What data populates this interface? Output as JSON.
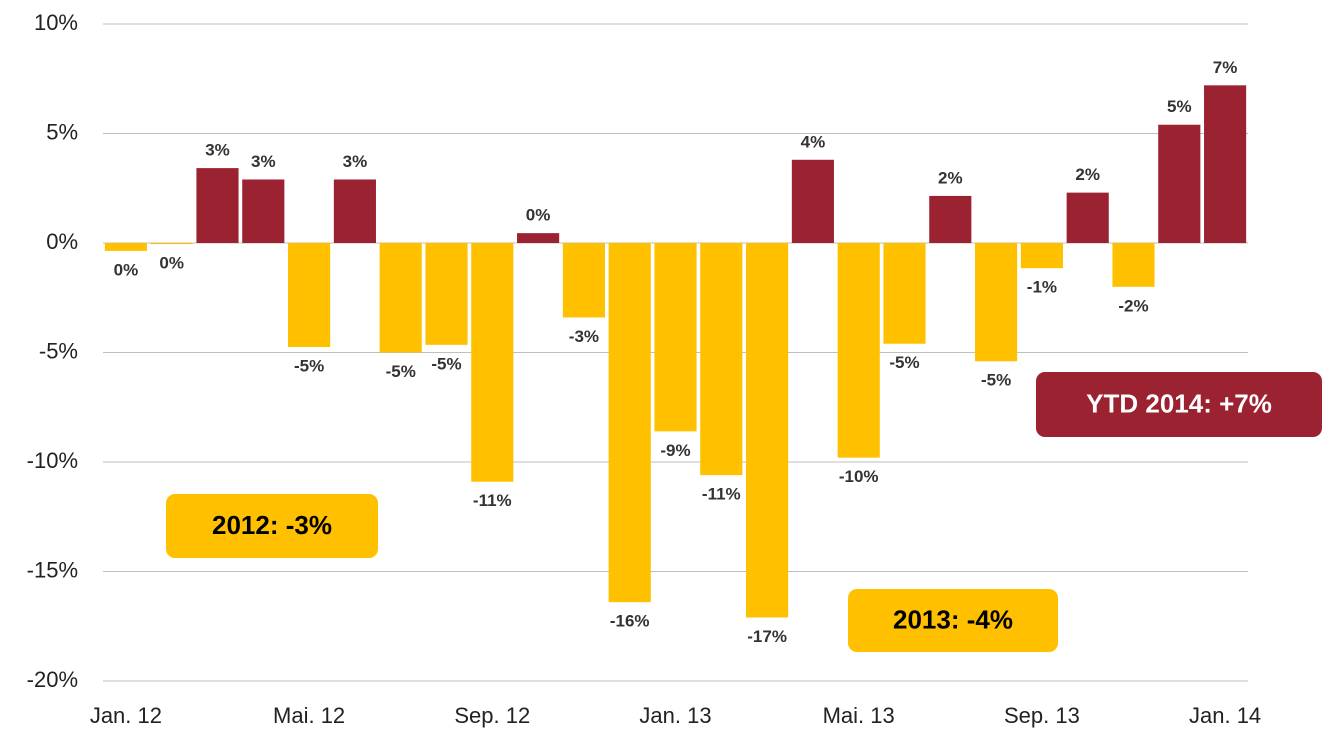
{
  "chart_data": {
    "type": "bar",
    "categories": [
      "Jan. 12",
      null,
      null,
      null,
      "Mai. 12",
      null,
      null,
      null,
      "Sep. 12",
      null,
      null,
      null,
      "Jan. 13",
      null,
      null,
      null,
      "Mai. 13",
      null,
      null,
      null,
      "Sep. 13",
      null,
      null,
      null,
      "Jan. 14"
    ],
    "values": [
      -0.36,
      -0.05,
      3.42,
      2.9,
      -4.75,
      2.9,
      -5.0,
      -4.65,
      -10.9,
      0.45,
      -3.4,
      -16.4,
      -8.6,
      -10.6,
      -17.1,
      3.8,
      -9.8,
      -4.6,
      2.15,
      -5.4,
      -1.15,
      2.3,
      -2.0,
      5.4,
      7.2
    ],
    "value_labels": [
      "0%",
      "0%",
      "3%",
      "3%",
      "-5%",
      "3%",
      "-5%",
      "-5%",
      "-11%",
      "0%",
      "-3%",
      "-16%",
      "-9%",
      "-11%",
      "-17%",
      "4%",
      "-10%",
      "-5%",
      "2%",
      "-5%",
      "-1%",
      "2%",
      "-2%",
      "5%",
      "7%"
    ],
    "positive_color": "#9b2230",
    "negative_color": "#ffc000",
    "ylim": [
      -20,
      10
    ],
    "yticks": [
      {
        "value": -20,
        "label": "-20%"
      },
      {
        "value": -15,
        "label": "-15%"
      },
      {
        "value": -10,
        "label": "-10%"
      },
      {
        "value": -5,
        "label": "-5%"
      },
      {
        "value": 0,
        "label": "0%"
      },
      {
        "value": 5,
        "label": "5%"
      },
      {
        "value": 10,
        "label": "10%"
      }
    ],
    "grid": true,
    "annotations": [
      {
        "text": "2012:  -3%",
        "color": "#ffc000",
        "text_color": "#000000"
      },
      {
        "text": "2013:  -4%",
        "color": "#ffc000",
        "text_color": "#000000"
      },
      {
        "text": "YTD 2014:  +7%",
        "color": "#9b2230",
        "text_color": "#ffffff"
      }
    ]
  }
}
